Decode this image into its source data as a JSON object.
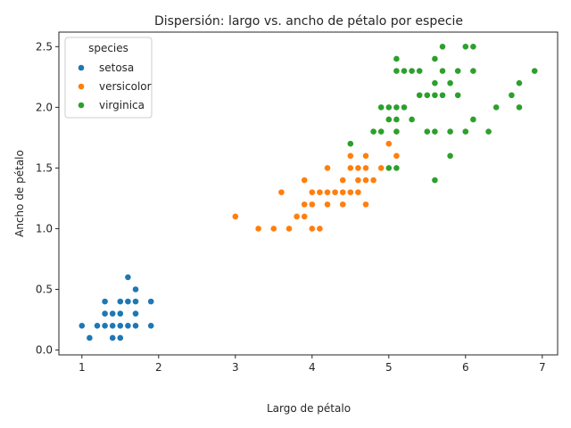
{
  "chart_data": {
    "type": "scatter",
    "title": "Dispersión: largo vs. ancho de pétalo por especie",
    "xlabel": "Largo de pétalo",
    "ylabel": "Ancho de pétalo",
    "xlim": [
      0.7,
      7.2
    ],
    "ylim": [
      -0.04,
      2.62
    ],
    "xticks": [
      "1",
      "2",
      "3",
      "4",
      "5",
      "6",
      "7"
    ],
    "yticks": [
      "0.0",
      "0.5",
      "1.0",
      "1.5",
      "2.0",
      "2.5"
    ],
    "grid": false,
    "legend": {
      "title": "species",
      "placement": "top-left"
    },
    "series": [
      {
        "name": "setosa",
        "color": "#1f77b4",
        "points": [
          [
            1.0,
            0.2
          ],
          [
            1.1,
            0.1
          ],
          [
            1.2,
            0.2
          ],
          [
            1.3,
            0.2
          ],
          [
            1.3,
            0.3
          ],
          [
            1.3,
            0.4
          ],
          [
            1.4,
            0.1
          ],
          [
            1.4,
            0.2
          ],
          [
            1.4,
            0.3
          ],
          [
            1.5,
            0.1
          ],
          [
            1.5,
            0.2
          ],
          [
            1.5,
            0.3
          ],
          [
            1.5,
            0.4
          ],
          [
            1.6,
            0.2
          ],
          [
            1.6,
            0.4
          ],
          [
            1.6,
            0.6
          ],
          [
            1.7,
            0.2
          ],
          [
            1.7,
            0.3
          ],
          [
            1.7,
            0.4
          ],
          [
            1.7,
            0.5
          ],
          [
            1.9,
            0.2
          ],
          [
            1.9,
            0.4
          ]
        ]
      },
      {
        "name": "versicolor",
        "color": "#ff7f0e",
        "points": [
          [
            3.0,
            1.1
          ],
          [
            3.3,
            1.0
          ],
          [
            3.5,
            1.0
          ],
          [
            3.6,
            1.3
          ],
          [
            3.7,
            1.0
          ],
          [
            3.8,
            1.1
          ],
          [
            3.9,
            1.1
          ],
          [
            3.9,
            1.2
          ],
          [
            3.9,
            1.4
          ],
          [
            4.0,
            1.0
          ],
          [
            4.0,
            1.2
          ],
          [
            4.0,
            1.3
          ],
          [
            4.1,
            1.0
          ],
          [
            4.1,
            1.3
          ],
          [
            4.2,
            1.2
          ],
          [
            4.2,
            1.3
          ],
          [
            4.2,
            1.5
          ],
          [
            4.3,
            1.3
          ],
          [
            4.4,
            1.2
          ],
          [
            4.4,
            1.3
          ],
          [
            4.4,
            1.4
          ],
          [
            4.5,
            1.3
          ],
          [
            4.5,
            1.5
          ],
          [
            4.5,
            1.6
          ],
          [
            4.6,
            1.3
          ],
          [
            4.6,
            1.4
          ],
          [
            4.6,
            1.5
          ],
          [
            4.7,
            1.2
          ],
          [
            4.7,
            1.4
          ],
          [
            4.7,
            1.5
          ],
          [
            4.7,
            1.6
          ],
          [
            4.8,
            1.4
          ],
          [
            4.8,
            1.8
          ],
          [
            4.9,
            1.5
          ],
          [
            5.0,
            1.7
          ],
          [
            5.1,
            1.6
          ]
        ]
      },
      {
        "name": "virginica",
        "color": "#2ca02c",
        "points": [
          [
            4.5,
            1.7
          ],
          [
            4.8,
            1.8
          ],
          [
            4.9,
            1.8
          ],
          [
            4.9,
            2.0
          ],
          [
            5.0,
            1.5
          ],
          [
            5.0,
            1.9
          ],
          [
            5.0,
            2.0
          ],
          [
            5.1,
            1.5
          ],
          [
            5.1,
            1.8
          ],
          [
            5.1,
            1.9
          ],
          [
            5.1,
            2.0
          ],
          [
            5.1,
            2.3
          ],
          [
            5.1,
            2.4
          ],
          [
            5.2,
            2.0
          ],
          [
            5.2,
            2.3
          ],
          [
            5.3,
            1.9
          ],
          [
            5.3,
            2.3
          ],
          [
            5.4,
            2.1
          ],
          [
            5.4,
            2.3
          ],
          [
            5.5,
            1.8
          ],
          [
            5.5,
            2.1
          ],
          [
            5.6,
            1.4
          ],
          [
            5.6,
            1.8
          ],
          [
            5.6,
            2.1
          ],
          [
            5.6,
            2.2
          ],
          [
            5.6,
            2.4
          ],
          [
            5.7,
            2.1
          ],
          [
            5.7,
            2.3
          ],
          [
            5.7,
            2.5
          ],
          [
            5.8,
            1.6
          ],
          [
            5.8,
            1.8
          ],
          [
            5.8,
            2.2
          ],
          [
            5.9,
            2.1
          ],
          [
            5.9,
            2.3
          ],
          [
            6.0,
            1.8
          ],
          [
            6.0,
            2.5
          ],
          [
            6.1,
            1.9
          ],
          [
            6.1,
            2.3
          ],
          [
            6.1,
            2.5
          ],
          [
            6.3,
            1.8
          ],
          [
            6.4,
            2.0
          ],
          [
            6.6,
            2.1
          ],
          [
            6.7,
            2.0
          ],
          [
            6.7,
            2.2
          ],
          [
            6.9,
            2.3
          ]
        ]
      }
    ]
  }
}
